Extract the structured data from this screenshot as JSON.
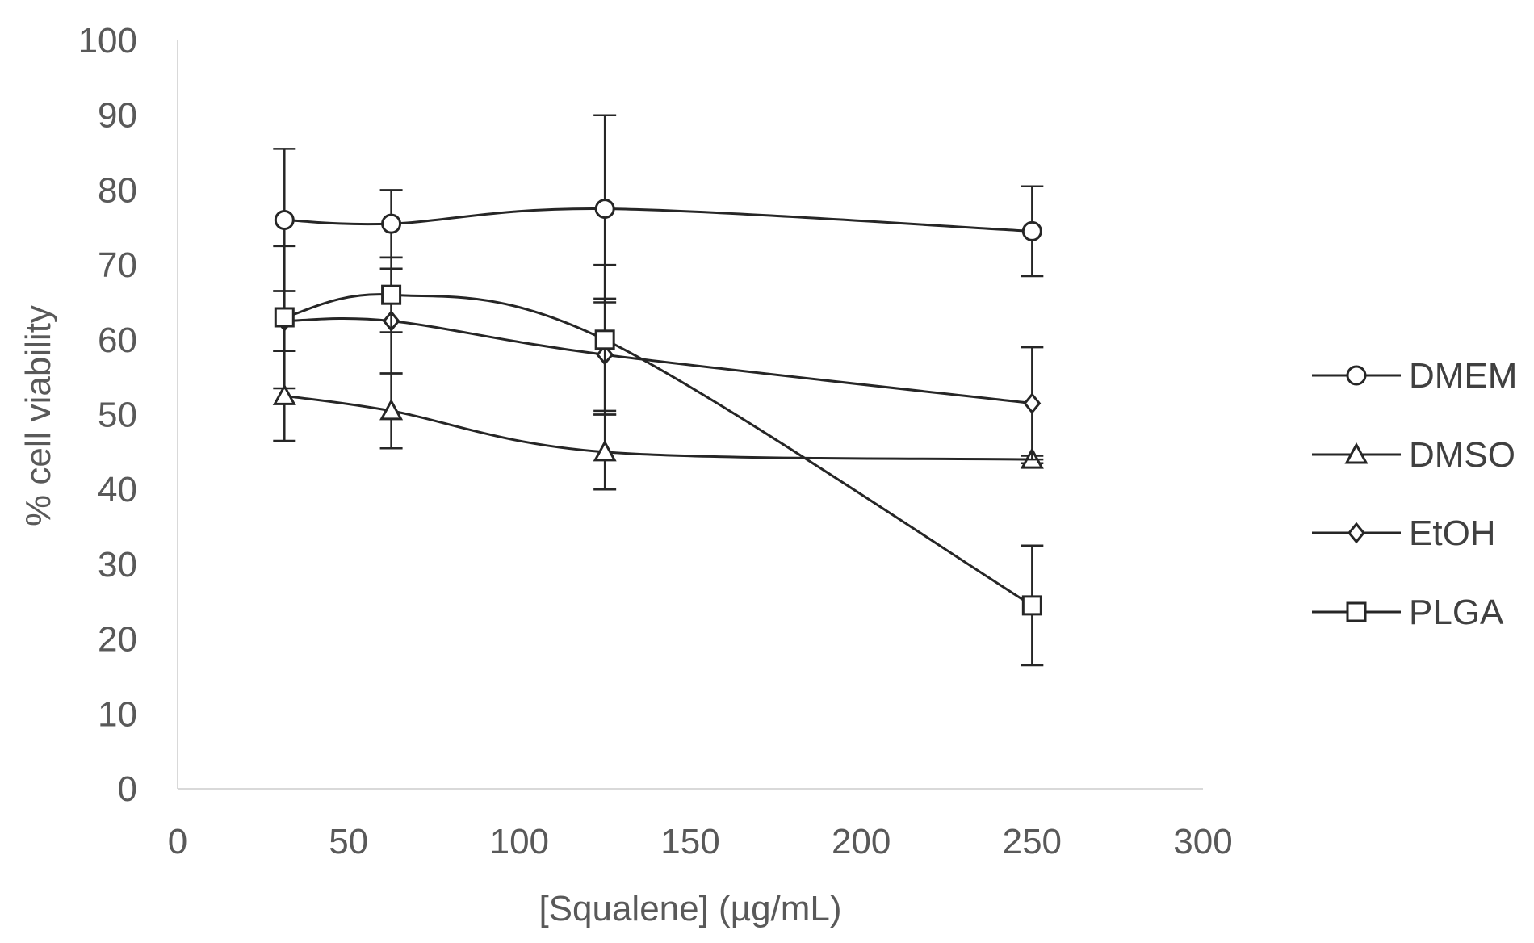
{
  "chart_data": {
    "type": "line",
    "title": "",
    "xlabel": "[Squalene] (µg/mL)",
    "ylabel": "% cell viability",
    "xlim": [
      0,
      300
    ],
    "ylim": [
      0,
      100
    ],
    "xticks": [
      0,
      50,
      100,
      150,
      200,
      250,
      300
    ],
    "yticks": [
      0,
      10,
      20,
      30,
      40,
      50,
      60,
      70,
      80,
      90,
      100
    ],
    "x": [
      31.25,
      62.5,
      125,
      250
    ],
    "grid": false,
    "legend_position": "right",
    "series": [
      {
        "name": "DMEM",
        "marker": "circle",
        "values": [
          76,
          75.5,
          77.5,
          74.5
        ],
        "errors": [
          9.5,
          4.5,
          12.5,
          6
        ]
      },
      {
        "name": "DMSO",
        "marker": "triangle",
        "values": [
          52.5,
          50.5,
          45,
          44
        ],
        "errors": [
          6,
          5,
          5,
          0.5
        ]
      },
      {
        "name": "EtOH",
        "marker": "diamond",
        "values": [
          62.5,
          62.5,
          58,
          51.5
        ],
        "errors": [
          4,
          7,
          7.5,
          7.5
        ]
      },
      {
        "name": "PLGA",
        "marker": "square",
        "values": [
          63,
          66,
          60,
          24.5
        ],
        "errors": [
          9.5,
          5,
          10,
          8
        ]
      }
    ],
    "colors": {
      "line": "#262626",
      "axis": "#d9d9d9",
      "tick_text": "#595959",
      "legend_text": "#404040",
      "marker_fill": "#ffffff"
    }
  }
}
